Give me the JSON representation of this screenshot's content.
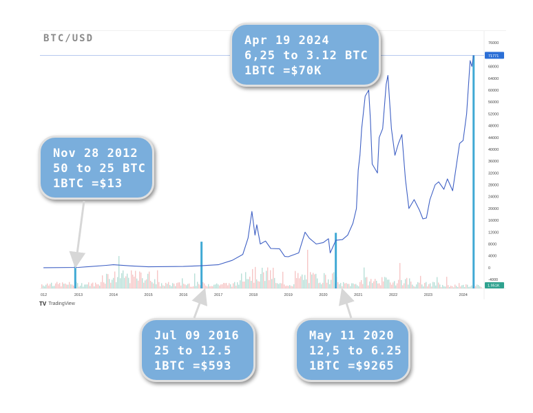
{
  "title": "BTC/USD",
  "brand": "TradingView",
  "colors": {
    "price_line": "#3d5fc4",
    "halving_marker": "#40a9d4",
    "callout_bg": "#7aaedc",
    "price_tag": "#2b6fd6",
    "volume_up": "#9fd4c9",
    "volume_down": "#f3b1b1"
  },
  "callouts": [
    {
      "lines": [
        "Nov 28 2012",
        "50 to 25 BTC",
        "1BTC =$13"
      ]
    },
    {
      "lines": [
        "Jul 09 2016",
        "25 to 12.5",
        "1BTC =$593"
      ]
    },
    {
      "lines": [
        "May 11 2020",
        "12,5 to 6.25",
        "1BTC =$9265"
      ]
    },
    {
      "lines": [
        "Apr 19 2024",
        "6,25 to 3.12 BTC",
        "1BTC =$70K"
      ]
    }
  ],
  "chart_data": {
    "type": "line",
    "title": "BTC/USD",
    "series": [
      {
        "values": [
          [
            2012.0,
            13
          ],
          [
            2013.0,
            100
          ],
          [
            2013.8,
            800
          ],
          [
            2014.0,
            1000
          ],
          [
            2014.5,
            600
          ],
          [
            2015.0,
            300
          ],
          [
            2016.0,
            430
          ],
          [
            2016.5,
            650
          ],
          [
            2017.0,
            1000
          ],
          [
            2017.4,
            2500
          ],
          [
            2017.7,
            4500
          ],
          [
            2017.85,
            10000
          ],
          [
            2017.96,
            19000
          ],
          [
            2018.05,
            11000
          ],
          [
            2018.1,
            14500
          ],
          [
            2018.2,
            8000
          ],
          [
            2018.35,
            9000
          ],
          [
            2018.5,
            6500
          ],
          [
            2018.75,
            6400
          ],
          [
            2018.9,
            3800
          ],
          [
            2019.0,
            3700
          ],
          [
            2019.3,
            5000
          ],
          [
            2019.48,
            12000
          ],
          [
            2019.6,
            10000
          ],
          [
            2019.8,
            8000
          ],
          [
            2020.0,
            8500
          ],
          [
            2020.15,
            9800
          ],
          [
            2020.2,
            5000
          ],
          [
            2020.36,
            9265
          ],
          [
            2020.55,
            9500
          ],
          [
            2020.7,
            11000
          ],
          [
            2020.85,
            15000
          ],
          [
            2020.95,
            20000
          ],
          [
            2021.0,
            33000
          ],
          [
            2021.05,
            38000
          ],
          [
            2021.1,
            47000
          ],
          [
            2021.2,
            58000
          ],
          [
            2021.3,
            60000
          ],
          [
            2021.35,
            50000
          ],
          [
            2021.4,
            35000
          ],
          [
            2021.5,
            33000
          ],
          [
            2021.55,
            32000
          ],
          [
            2021.6,
            44000
          ],
          [
            2021.7,
            47000
          ],
          [
            2021.8,
            62000
          ],
          [
            2021.85,
            65000
          ],
          [
            2021.95,
            47000
          ],
          [
            2022.05,
            38000
          ],
          [
            2022.15,
            42000
          ],
          [
            2022.25,
            45000
          ],
          [
            2022.35,
            30000
          ],
          [
            2022.45,
            20000
          ],
          [
            2022.6,
            23000
          ],
          [
            2022.75,
            19500
          ],
          [
            2022.85,
            16500
          ],
          [
            2022.95,
            16800
          ],
          [
            2023.05,
            23000
          ],
          [
            2023.2,
            28000
          ],
          [
            2023.3,
            29000
          ],
          [
            2023.45,
            26500
          ],
          [
            2023.55,
            30000
          ],
          [
            2023.7,
            26000
          ],
          [
            2023.8,
            34000
          ],
          [
            2023.9,
            42000
          ],
          [
            2024.0,
            43000
          ],
          [
            2024.1,
            52000
          ],
          [
            2024.2,
            70000
          ],
          [
            2024.25,
            68000
          ],
          [
            2024.3,
            71771
          ]
        ]
      }
    ],
    "x_ticks": [
      "012",
      "2013",
      "2014",
      "2015",
      "2016",
      "2017",
      "2018",
      "2019",
      "2020",
      "2021",
      "2022",
      "2023",
      "2024"
    ],
    "y_ticks": [
      80000,
      76000,
      72000,
      68000,
      64000,
      60000,
      56000,
      52000,
      48000,
      44000,
      40000,
      36000,
      32000,
      28000,
      24000,
      20000,
      16000,
      12000,
      8000,
      4000,
      0,
      -4000
    ],
    "ylim": [
      -7000,
      80000
    ],
    "xlim": [
      2011.9,
      2024.6
    ],
    "current_price": 71771,
    "current_price_label": "71771",
    "volume_label": "1.951K",
    "halvings": [
      2012.91,
      2016.52,
      2020.36,
      2024.3
    ]
  }
}
